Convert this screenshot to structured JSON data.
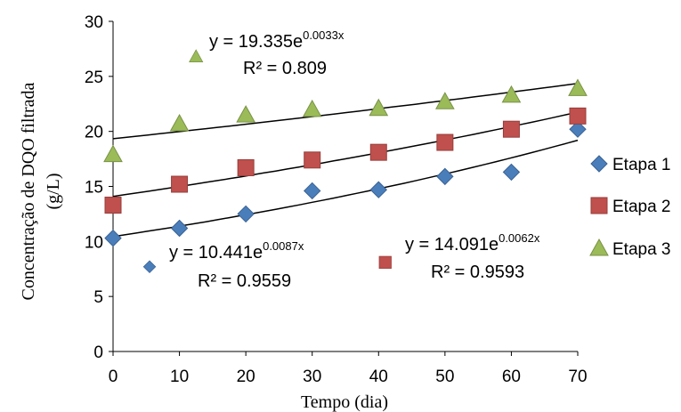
{
  "chart_data": {
    "type": "scatter",
    "title": "",
    "xlabel": "Tempo (dia)",
    "ylabel_line1": "Concentração de DQO filtrada",
    "ylabel_line2": "(g/L)",
    "xlim": [
      0,
      70
    ],
    "ylim": [
      0,
      30
    ],
    "xticks": [
      "0",
      "10",
      "20",
      "30",
      "40",
      "50",
      "60",
      "70"
    ],
    "yticks": [
      "0",
      "5",
      "10",
      "15",
      "20",
      "25",
      "30"
    ],
    "grid": false,
    "legend_position": "right",
    "series": [
      {
        "name": "Etapa 1",
        "marker": "diamond",
        "color": "#4a7ebb",
        "x": [
          0,
          10,
          20,
          30,
          40,
          50,
          60,
          70
        ],
        "y": [
          10.3,
          11.2,
          12.5,
          14.6,
          14.7,
          15.9,
          16.3,
          20.2
        ],
        "trend": {
          "a": 10.441,
          "b": 0.0087
        },
        "eq_base": "y = 10.441e",
        "eq_exp": "0.0087x",
        "r2": "R² = 0.9559"
      },
      {
        "name": "Etapa 2",
        "marker": "square",
        "color": "#c0504d",
        "x": [
          0,
          10,
          20,
          30,
          40,
          50,
          60,
          70
        ],
        "y": [
          13.3,
          15.2,
          16.7,
          17.4,
          18.1,
          19.0,
          20.2,
          21.4
        ],
        "trend": {
          "a": 14.091,
          "b": 0.0062
        },
        "eq_base": "y = 14.091e",
        "eq_exp": "0.0062x",
        "r2": "R² = 0.9593"
      },
      {
        "name": "Etapa 3",
        "marker": "triangle",
        "color": "#9bbb59",
        "x": [
          0,
          10,
          20,
          30,
          40,
          50,
          60,
          70
        ],
        "y": [
          17.9,
          20.7,
          21.5,
          22.0,
          22.1,
          22.7,
          23.3,
          23.9
        ],
        "trend": {
          "a": 19.335,
          "b": 0.0033
        },
        "eq_base": "y = 19.335e",
        "eq_exp": "0.0033x",
        "r2": "R² = 0.809"
      }
    ],
    "stray_markers": [
      {
        "series": 2,
        "x": 12.5,
        "y": 26.8
      },
      {
        "series": 0,
        "x": 5.5,
        "y": 7.7
      },
      {
        "series": 1,
        "x": 41,
        "y": 8.1
      }
    ]
  }
}
